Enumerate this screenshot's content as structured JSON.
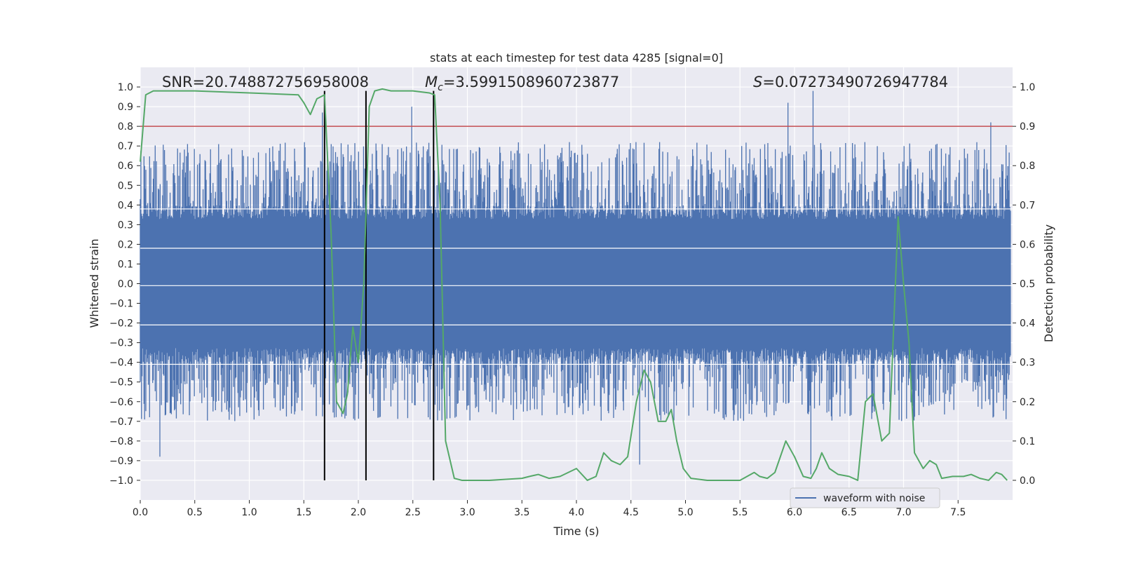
{
  "chart_data": {
    "type": "line",
    "title": "stats at each timestep for test data 4285 [signal=0]",
    "xlabel": "Time (s)",
    "ylabel_left": "Whitened strain",
    "ylabel_right": "Detection probability",
    "xlim": [
      0.0,
      8.0
    ],
    "ylim_left": [
      -1.1,
      1.1
    ],
    "ylim_right": [
      -0.05,
      1.05
    ],
    "x_ticks": [
      0.0,
      0.5,
      1.0,
      1.5,
      2.0,
      2.5,
      3.0,
      3.5,
      4.0,
      4.5,
      5.0,
      5.5,
      6.0,
      6.5,
      7.0,
      7.5
    ],
    "x_tick_labels": [
      "0.0",
      "0.5",
      "1.0",
      "1.5",
      "2.0",
      "2.5",
      "3.0",
      "3.5",
      "4.0",
      "4.5",
      "5.0",
      "5.5",
      "6.0",
      "6.5",
      "7.0",
      "7.5"
    ],
    "y_left_ticks": [
      1.0,
      0.9,
      0.8,
      0.7,
      0.6,
      0.5,
      0.4,
      0.3,
      0.2,
      0.1,
      0.0,
      -0.1,
      -0.2,
      -0.3,
      -0.4,
      -0.5,
      -0.6,
      -0.7,
      -0.8,
      -0.9,
      -1.0
    ],
    "y_left_tick_labels": [
      "1.0",
      "0.9",
      "0.8",
      "0.7",
      "0.6",
      "0.5",
      "0.4",
      "0.3",
      "0.2",
      "0.1",
      "0.0",
      "−0.1",
      "−0.2",
      "−0.3",
      "−0.4",
      "−0.5",
      "−0.6",
      "−0.7",
      "−0.8",
      "−0.9",
      "−1.0"
    ],
    "y_right_ticks": [
      1.0,
      0.9,
      0.8,
      0.7,
      0.6,
      0.5,
      0.4,
      0.3,
      0.2,
      0.1,
      0.0
    ],
    "y_right_tick_labels": [
      "1.0",
      "0.9",
      "0.8",
      "0.7",
      "0.6",
      "0.5",
      "0.4",
      "0.3",
      "0.2",
      "0.1",
      "0.0"
    ],
    "annotations": {
      "snr": "SNR=20.748872756958008",
      "mc_symbol": "M",
      "mc_subscript": "c",
      "mc_value": "=3.5991508960723877",
      "s_symbol": "S",
      "s_value": "=0.07273490726947784"
    },
    "threshold_right": 0.9,
    "vertical_lines_x": [
      1.69,
      2.07,
      2.69
    ],
    "series": [
      {
        "name": "waveform with noise",
        "axis": "left",
        "color": "#4c72b0",
        "style": "noise",
        "amplitude_envelope": 0.4,
        "peak_max": 0.98,
        "peak_min": -0.92,
        "peaks": [
          {
            "x": 1.67,
            "y": 0.87
          },
          {
            "x": 2.49,
            "y": 0.9
          },
          {
            "x": 6.17,
            "y": 0.98
          },
          {
            "x": 5.94,
            "y": 0.92
          },
          {
            "x": 7.8,
            "y": 0.82
          },
          {
            "x": 0.18,
            "y": -0.88
          },
          {
            "x": 4.58,
            "y": -0.92
          },
          {
            "x": 6.15,
            "y": -0.97
          }
        ]
      },
      {
        "name": "detection probability",
        "axis": "right",
        "color": "#55a868",
        "x": [
          0.0,
          0.05,
          0.12,
          0.2,
          0.5,
          1.0,
          1.45,
          1.5,
          1.56,
          1.62,
          1.69,
          1.75,
          1.8,
          1.86,
          1.9,
          1.95,
          2.0,
          2.05,
          2.1,
          2.15,
          2.22,
          2.3,
          2.5,
          2.65,
          2.7,
          2.75,
          2.8,
          2.88,
          2.95,
          3.2,
          3.5,
          3.57,
          3.65,
          3.75,
          3.85,
          4.0,
          4.1,
          4.18,
          4.25,
          4.32,
          4.4,
          4.47,
          4.55,
          4.62,
          4.68,
          4.75,
          4.82,
          4.87,
          4.92,
          4.98,
          5.05,
          5.2,
          5.5,
          5.63,
          5.68,
          5.75,
          5.82,
          5.92,
          6.0,
          6.08,
          6.15,
          6.2,
          6.25,
          6.32,
          6.4,
          6.5,
          6.58,
          6.65,
          6.72,
          6.8,
          6.87,
          6.95,
          7.0,
          7.05,
          7.1,
          7.18,
          7.24,
          7.3,
          7.35,
          7.45,
          7.55,
          7.62,
          7.7,
          7.78,
          7.85,
          7.9,
          7.95
        ],
        "y": [
          0.81,
          0.98,
          0.99,
          0.99,
          0.99,
          0.985,
          0.98,
          0.96,
          0.93,
          0.97,
          0.98,
          0.63,
          0.2,
          0.17,
          0.22,
          0.39,
          0.3,
          0.5,
          0.95,
          0.99,
          0.995,
          0.99,
          0.99,
          0.985,
          0.98,
          0.7,
          0.1,
          0.005,
          0.0,
          0.0,
          0.005,
          0.01,
          0.015,
          0.005,
          0.01,
          0.03,
          0.0,
          0.01,
          0.07,
          0.05,
          0.04,
          0.06,
          0.2,
          0.28,
          0.25,
          0.15,
          0.15,
          0.18,
          0.1,
          0.03,
          0.005,
          0.0,
          0.0,
          0.02,
          0.01,
          0.005,
          0.02,
          0.1,
          0.06,
          0.01,
          0.005,
          0.03,
          0.07,
          0.03,
          0.015,
          0.01,
          0.0,
          0.2,
          0.22,
          0.1,
          0.12,
          0.67,
          0.5,
          0.35,
          0.07,
          0.03,
          0.05,
          0.04,
          0.005,
          0.01,
          0.01,
          0.015,
          0.005,
          0.0,
          0.02,
          0.015,
          0.0
        ]
      }
    ],
    "legend": {
      "label": "waveform with noise",
      "placement": "lower-right"
    },
    "colors": {
      "plot_background": "#eaeaf2",
      "grid": "#ffffff",
      "threshold": "#c44e52",
      "vertical_line": "#000000"
    }
  }
}
